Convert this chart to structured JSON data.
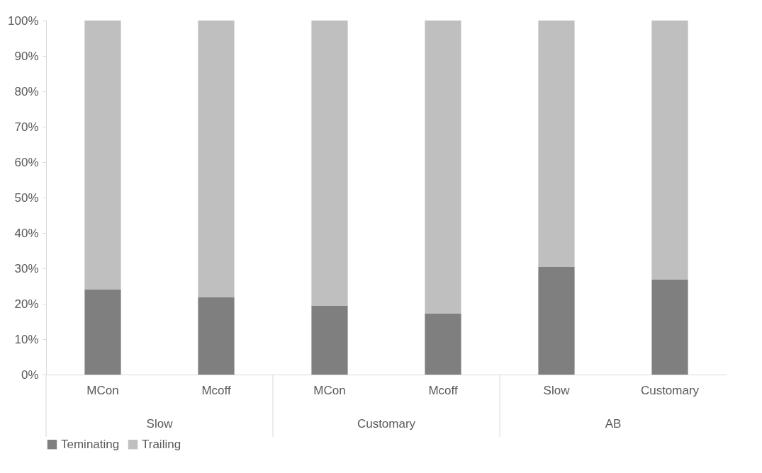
{
  "chart_data": {
    "type": "bar",
    "stacked": true,
    "categories": [
      "MCon",
      "Mcoff",
      "MCon",
      "Mcoff",
      "Slow",
      "Customary"
    ],
    "annotations": [
      "Slow",
      "Customary",
      "AB"
    ],
    "series": [
      {
        "name": "Teminating",
        "color": "#7f7f7f",
        "values": [
          24.1,
          21.9,
          19.5,
          17.3,
          30.4,
          26.8
        ]
      },
      {
        "name": "Trailing",
        "color": "#bfbfbf",
        "values": [
          75.9,
          78.1,
          80.5,
          82.7,
          69.6,
          73.2
        ]
      }
    ],
    "ylim": [
      0,
      100
    ],
    "yticks": [
      {
        "value": 0,
        "label": "0%"
      },
      {
        "value": 10,
        "label": "10%"
      },
      {
        "value": 20,
        "label": "20%"
      },
      {
        "value": 30,
        "label": "30%"
      },
      {
        "value": 40,
        "label": "40%"
      },
      {
        "value": 50,
        "label": "50%"
      },
      {
        "value": 60,
        "label": "60%"
      },
      {
        "value": 70,
        "label": "70%"
      },
      {
        "value": 80,
        "label": "80%"
      },
      {
        "value": 90,
        "label": "90%"
      },
      {
        "value": 100,
        "label": "100%"
      }
    ],
    "grid": false,
    "legend": "bottom"
  }
}
